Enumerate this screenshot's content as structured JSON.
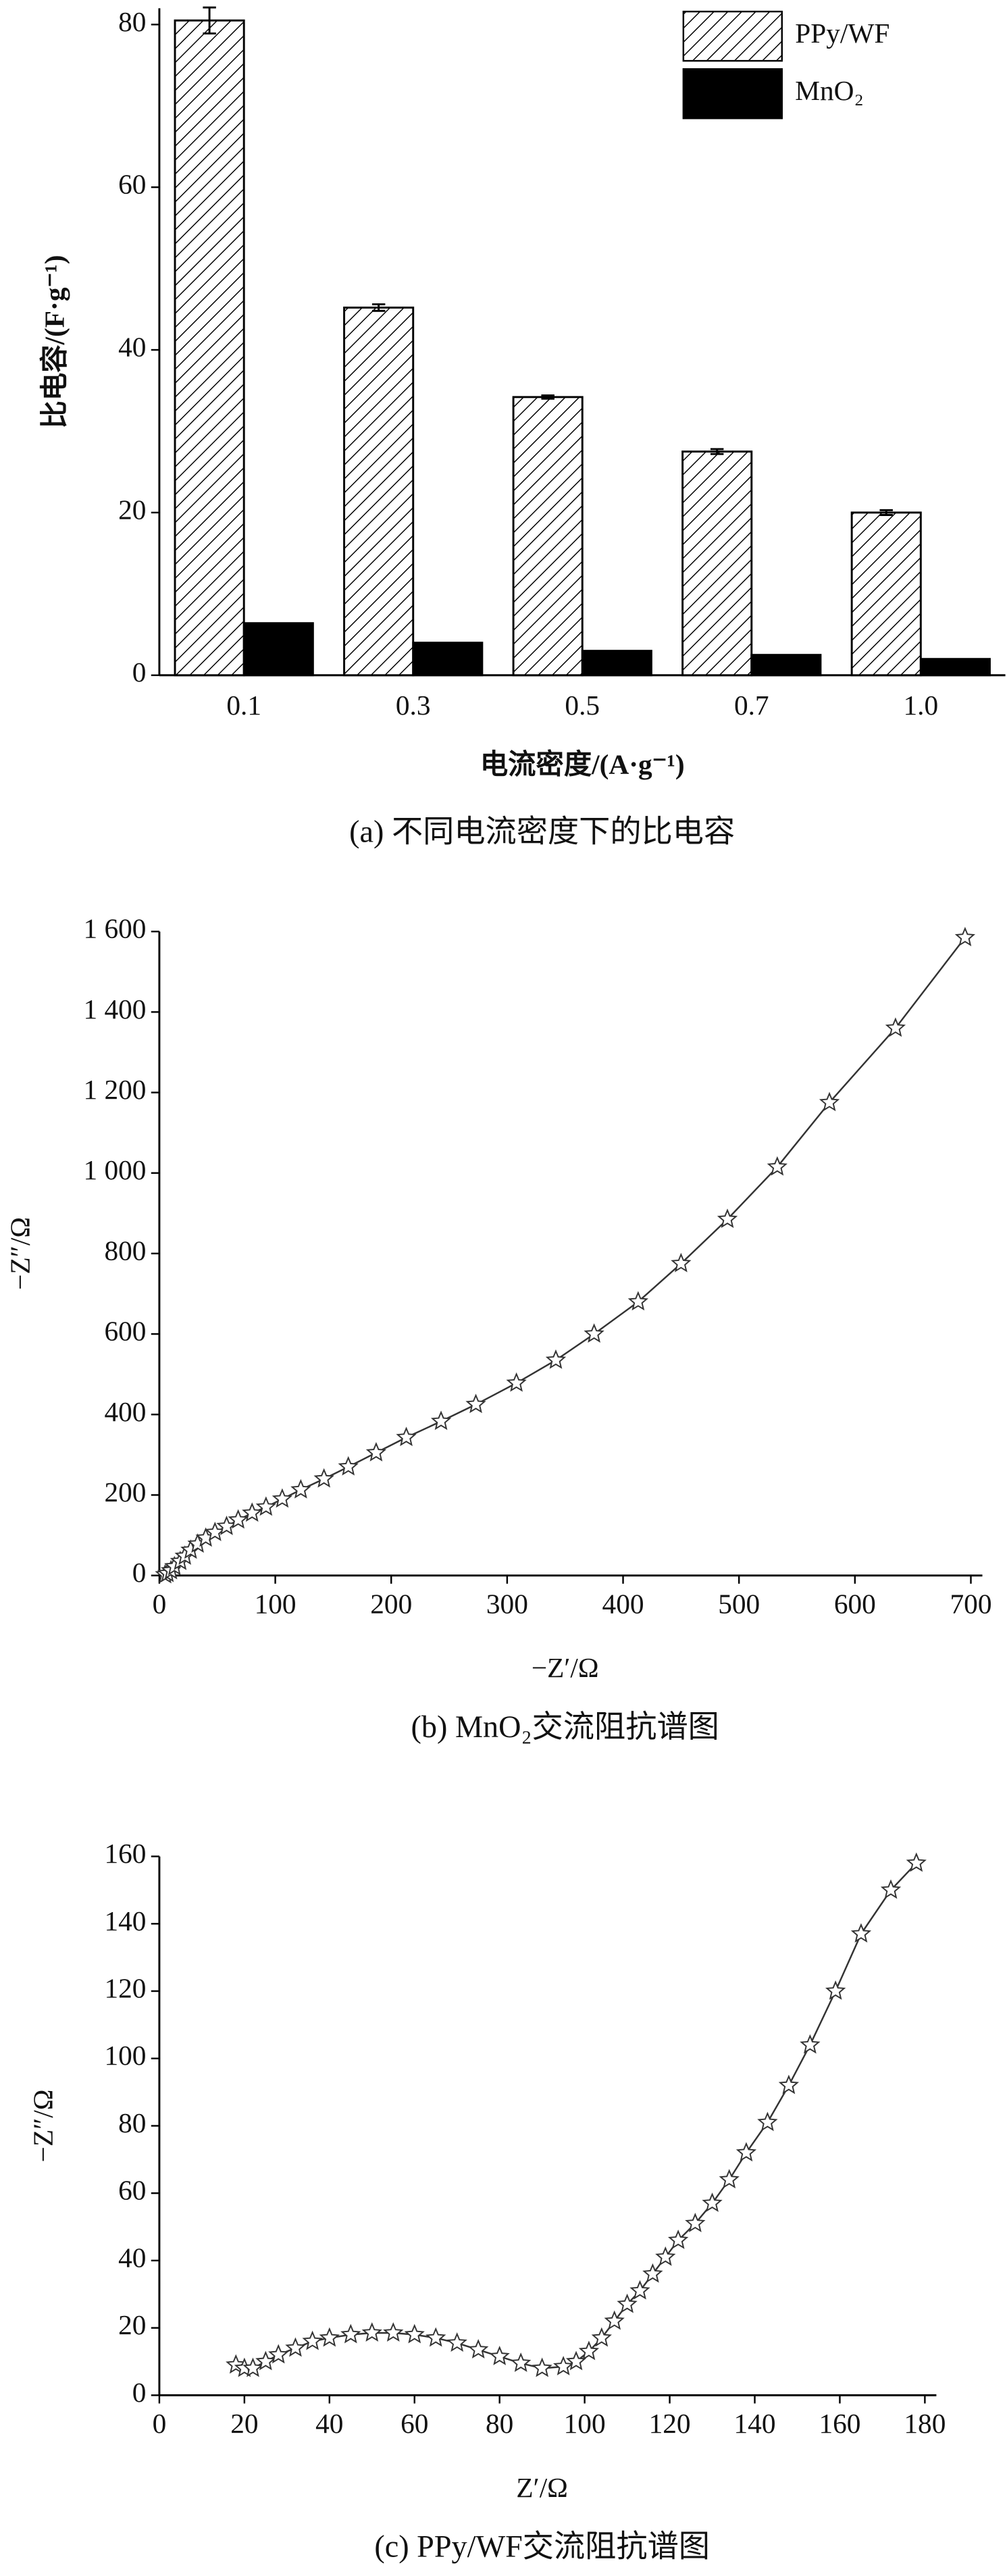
{
  "chart_data": [
    {
      "type": "bar",
      "categories": [
        "0.1",
        "0.3",
        "0.5",
        "0.7",
        "1.0"
      ],
      "series": [
        {
          "name": "PPy/WF",
          "color": "#ffffff",
          "hatch": true,
          "values": [
            80.5,
            45.2,
            34.2,
            27.5,
            20.0
          ],
          "errors": [
            1.6,
            0.4,
            0.2,
            0.3,
            0.3
          ]
        },
        {
          "name": "MnO₂",
          "color": "#000000",
          "hatch": false,
          "values": [
            6.4,
            4.0,
            3.0,
            2.5,
            2.0
          ]
        }
      ],
      "ylim": [
        0,
        82
      ],
      "yticks": [
        0,
        20,
        40,
        60,
        80
      ],
      "xlabel": "电流密度/(A·g⁻¹)",
      "ylabel": "比电容/(F·g⁻¹)",
      "caption": "(a) 不同电流密度下的比电容",
      "legend": "upper right"
    },
    {
      "type": "line",
      "marker": "star",
      "color": "#333333",
      "x": [
        5,
        7,
        10,
        13,
        18,
        22,
        27,
        33,
        40,
        48,
        58,
        68,
        80,
        92,
        106,
        122,
        142,
        163,
        187,
        213,
        243,
        273,
        308,
        342,
        375,
        413,
        450,
        490,
        533,
        578,
        635,
        695
      ],
      "values": [
        2,
        5,
        12,
        22,
        35,
        48,
        63,
        78,
        93,
        107,
        122,
        138,
        155,
        170,
        190,
        213,
        240,
        270,
        305,
        343,
        383,
        425,
        478,
        535,
        600,
        680,
        775,
        885,
        1015,
        1175,
        1360,
        1585
      ],
      "xlim": [
        0,
        700
      ],
      "xticks": [
        0,
        100,
        200,
        300,
        400,
        500,
        600,
        700
      ],
      "ylim": [
        0,
        1600
      ],
      "yticks": [
        0,
        200,
        400,
        600,
        800,
        {
          "value": 1000,
          "label": "1 000"
        },
        {
          "value": 1200,
          "label": "1 200"
        },
        {
          "value": 1400,
          "label": "1 400"
        },
        {
          "value": 1600,
          "label": "1 600"
        }
      ],
      "xlabel": "−Z′/Ω",
      "ylabel": "−Z″/Ω",
      "caption": "(b) MnO₂交流阻抗谱图"
    },
    {
      "type": "line",
      "marker": "star",
      "color": "#333333",
      "x": [
        18,
        20,
        22,
        25,
        28,
        32,
        36,
        40,
        45,
        50,
        55,
        60,
        65,
        70,
        75,
        80,
        85,
        90,
        95,
        98,
        101,
        104,
        107,
        110,
        113,
        116,
        119,
        122,
        126,
        130,
        134,
        138,
        143,
        148,
        153,
        159,
        165,
        172,
        178
      ],
      "values": [
        9,
        8,
        8,
        10,
        12,
        14,
        16,
        17,
        18,
        18.5,
        18.5,
        18,
        17,
        15.5,
        13.5,
        11.5,
        9.5,
        8,
        8.5,
        10,
        13,
        17,
        22,
        27,
        31,
        36,
        41,
        46,
        51,
        57,
        64,
        72,
        81,
        92,
        104,
        120,
        137,
        150,
        158
      ],
      "xlim": [
        0,
        180
      ],
      "xticks": [
        0,
        20,
        40,
        60,
        80,
        100,
        120,
        140,
        160,
        180
      ],
      "ylim": [
        0,
        160
      ],
      "yticks": [
        0,
        20,
        40,
        60,
        80,
        100,
        120,
        140,
        160
      ],
      "xlabel": "Z′/Ω",
      "ylabel": "−Z″/Ω",
      "caption": "(c) PPy/WF交流阻抗谱图"
    }
  ]
}
